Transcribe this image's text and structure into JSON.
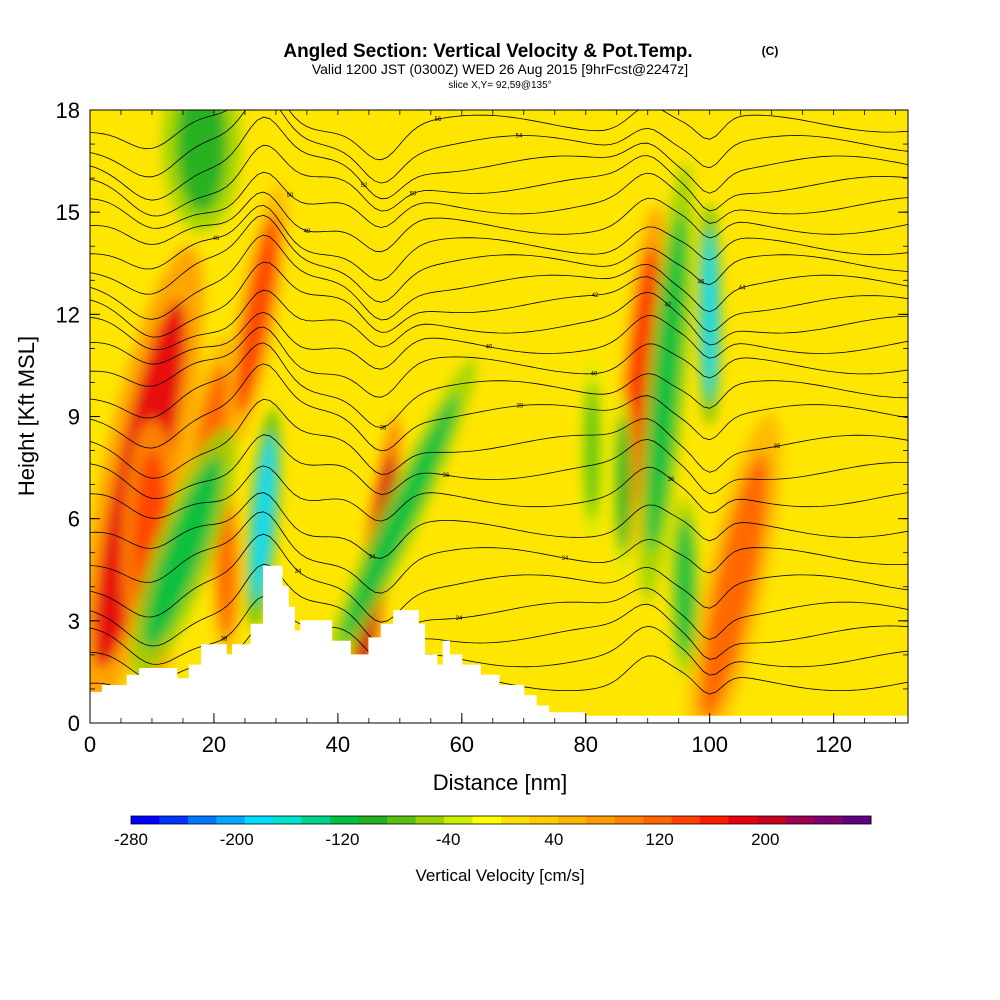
{
  "chart_data": {
    "type": "heatmap",
    "title": "Angled Section: Vertical Velocity & Pot.Temp.",
    "title_unit": "(C)",
    "subtitle": "Valid 1200 JST (0300Z) WED 26 Aug 2015 [9hrFcst@2247z]",
    "subtitle2": "slice X,Y= 92,59@135°",
    "xlabel": "Distance [nm]",
    "ylabel": "Height [Kft MSL]",
    "xlim": [
      0,
      132
    ],
    "ylim": [
      0,
      18
    ],
    "x_ticks": [
      "0",
      "20",
      "40",
      "60",
      "80",
      "100",
      "120"
    ],
    "y_ticks": [
      "0",
      "3",
      "6",
      "9",
      "12",
      "15",
      "18"
    ],
    "colorbar": {
      "label": "Vertical Velocity [cm/s]",
      "range": [
        -280,
        280
      ],
      "tick_labels": [
        "-280",
        "-200",
        "-120",
        "-40",
        "40",
        "120",
        "200"
      ],
      "tick_values": [
        -280,
        -200,
        -120,
        -40,
        40,
        120,
        200
      ],
      "colors": [
        "#0000ff",
        "#0033ff",
        "#0077ff",
        "#00aaff",
        "#00ddff",
        "#00e5cc",
        "#00d488",
        "#00c040",
        "#22b022",
        "#55c010",
        "#99d400",
        "#ccee00",
        "#ffff00",
        "#ffe000",
        "#ffcc00",
        "#ffb400",
        "#ff9900",
        "#ff7f00",
        "#ff6400",
        "#ff4000",
        "#ff1a00",
        "#e60010",
        "#c8001e",
        "#a00050",
        "#800070",
        "#600080"
      ]
    },
    "terrain_kft": [
      [
        0,
        0.9
      ],
      [
        2,
        0.9
      ],
      [
        2,
        1.1
      ],
      [
        6,
        1.1
      ],
      [
        6,
        1.4
      ],
      [
        8,
        1.4
      ],
      [
        8,
        1.6
      ],
      [
        14,
        1.6
      ],
      [
        14,
        1.3
      ],
      [
        16,
        1.3
      ],
      [
        16,
        1.7
      ],
      [
        18,
        1.7
      ],
      [
        18,
        2.3
      ],
      [
        22,
        2.3
      ],
      [
        22,
        2.0
      ],
      [
        23,
        2.0
      ],
      [
        23,
        2.3
      ],
      [
        26,
        2.3
      ],
      [
        26,
        2.9
      ],
      [
        28,
        2.9
      ],
      [
        28,
        4.6
      ],
      [
        31,
        4.6
      ],
      [
        31,
        4.0
      ],
      [
        32,
        4.0
      ],
      [
        32,
        3.4
      ],
      [
        33,
        3.4
      ],
      [
        33,
        2.7
      ],
      [
        34,
        2.7
      ],
      [
        34,
        3.0
      ],
      [
        39,
        3.0
      ],
      [
        39,
        2.4
      ],
      [
        42,
        2.4
      ],
      [
        42,
        2.0
      ],
      [
        45,
        2.0
      ],
      [
        45,
        2.5
      ],
      [
        47,
        2.5
      ],
      [
        47,
        2.9
      ],
      [
        49,
        2.9
      ],
      [
        49,
        3.3
      ],
      [
        53,
        3.3
      ],
      [
        53,
        2.9
      ],
      [
        54,
        2.9
      ],
      [
        54,
        2.0
      ],
      [
        56,
        2.0
      ],
      [
        56,
        1.7
      ],
      [
        57,
        1.7
      ],
      [
        57,
        2.4
      ],
      [
        58,
        2.4
      ],
      [
        58,
        2.0
      ],
      [
        60,
        2.0
      ],
      [
        60,
        1.7
      ],
      [
        63,
        1.7
      ],
      [
        63,
        1.4
      ],
      [
        66,
        1.4
      ],
      [
        66,
        1.1
      ],
      [
        70,
        1.1
      ],
      [
        70,
        0.8
      ],
      [
        72,
        0.8
      ],
      [
        72,
        0.5
      ],
      [
        74,
        0.5
      ],
      [
        74,
        0.3
      ],
      [
        80,
        0.3
      ],
      [
        80,
        0.2
      ],
      [
        132,
        0.2
      ]
    ],
    "cells": [
      {
        "x": 8,
        "y": 7.0,
        "w": -1,
        "v": 190,
        "rx": 4,
        "ry": 5.5,
        "rot": 12
      },
      {
        "x": 10,
        "y": 5.0,
        "w": 0,
        "v": 150,
        "rx": 3,
        "ry": 3,
        "rot": 0
      },
      {
        "x": 19,
        "y": 7.5,
        "w": 0,
        "v": 110,
        "rx": 2.5,
        "ry": 3,
        "rot": 8
      },
      {
        "x": 22,
        "y": 4.5,
        "w": 0,
        "v": 110,
        "rx": 1.5,
        "ry": 2,
        "rot": 0
      },
      {
        "x": 27,
        "y": 12,
        "w": 0,
        "v": 130,
        "rx": 2,
        "ry": 3,
        "rot": 10
      },
      {
        "x": 46,
        "y": 4.5,
        "w": 0,
        "v": 210,
        "rx": 1.5,
        "ry": 3.5,
        "rot": 8
      },
      {
        "x": 89,
        "y": 10,
        "w": 0,
        "v": 170,
        "rx": 2,
        "ry": 4,
        "rot": 5
      },
      {
        "x": 104,
        "y": 4,
        "w": 0,
        "v": 120,
        "rx": 3,
        "ry": 4,
        "rot": 12
      },
      {
        "x": 15,
        "y": 5,
        "w": 0,
        "v": -110,
        "rx": 3,
        "ry": 3,
        "rot": 20
      },
      {
        "x": 18,
        "y": 17,
        "w": 0,
        "v": -100,
        "rx": 4,
        "ry": 2,
        "rot": 0
      },
      {
        "x": 28,
        "y": 6,
        "w": 0,
        "v": -190,
        "rx": 1.5,
        "ry": 2.5,
        "rot": 5
      },
      {
        "x": 50,
        "y": 6,
        "w": 0,
        "v": -110,
        "rx": 2,
        "ry": 4,
        "rot": 25
      },
      {
        "x": 81,
        "y": 8,
        "w": 0,
        "v": -80,
        "rx": 1.2,
        "ry": 2,
        "rot": 0
      },
      {
        "x": 86,
        "y": 7,
        "w": 0,
        "v": -90,
        "rx": 1.2,
        "ry": 2,
        "rot": 0
      },
      {
        "x": 93,
        "y": 10,
        "w": 0,
        "v": -110,
        "rx": 2,
        "ry": 5,
        "rot": 5
      },
      {
        "x": 96,
        "y": 4,
        "w": 0,
        "v": -120,
        "rx": 1.5,
        "ry": 2,
        "rot": 0
      },
      {
        "x": 100,
        "y": 12,
        "w": 0,
        "v": -180,
        "rx": 1.2,
        "ry": 2.5,
        "rot": 0
      }
    ],
    "isotherms": [
      {
        "label": "38",
        "base": 1.2
      },
      {
        "label": "38",
        "base": 1.9
      },
      {
        "label": "38",
        "base": 2.6
      },
      {
        "label": "34",
        "base": 3.3
      },
      {
        "label": "34",
        "base": 4.1
      },
      {
        "label": "34",
        "base": 4.9
      },
      {
        "label": "34",
        "base": 5.7
      },
      {
        "label": "36",
        "base": 6.6
      },
      {
        "label": "36",
        "base": 7.4
      },
      {
        "label": "36",
        "base": 8.2
      },
      {
        "label": "38",
        "base": 9.1
      },
      {
        "label": "38",
        "base": 9.8
      },
      {
        "label": "40",
        "base": 10.5
      },
      {
        "label": "40",
        "base": 11.1
      },
      {
        "label": "42",
        "base": 11.7
      },
      {
        "label": "42",
        "base": 12.3
      },
      {
        "label": "44",
        "base": 12.9
      },
      {
        "label": "46",
        "base": 13.5
      },
      {
        "label": "46",
        "base": 14.0
      },
      {
        "label": "48",
        "base": 14.6
      },
      {
        "label": "50",
        "base": 15.2
      },
      {
        "label": "50",
        "base": 15.8
      },
      {
        "label": "52",
        "base": 16.4
      },
      {
        "label": "54",
        "base": 17.0
      },
      {
        "label": "56",
        "base": 17.6
      }
    ]
  }
}
